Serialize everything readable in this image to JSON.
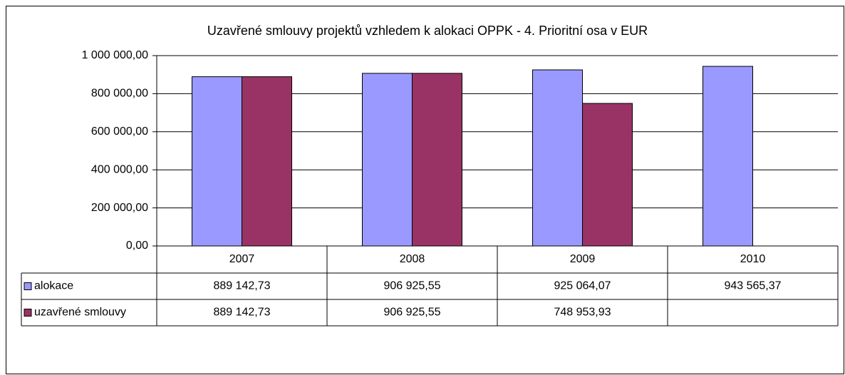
{
  "chart_data": {
    "type": "bar",
    "title": "Uzavřené smlouvy projektů vzhledem k alokaci OPPK - 4. Prioritní osa v EUR",
    "categories": [
      "2007",
      "2008",
      "2009",
      "2010"
    ],
    "series": [
      {
        "name": "alokace",
        "color": "#9999ff",
        "values": [
          889142.73,
          906925.55,
          925064.07,
          943565.37
        ],
        "value_labels": [
          "889 142,73",
          "906 925,55",
          "925 064,07",
          "943 565,37"
        ]
      },
      {
        "name": "uzavřené smlouvy",
        "color": "#993366",
        "values": [
          889142.73,
          906925.55,
          748953.93,
          null
        ],
        "value_labels": [
          "889 142,73",
          "906 925,55",
          "748 953,93",
          null
        ]
      }
    ],
    "ylim": [
      0,
      1000000
    ],
    "yticks": [
      {
        "value": 0,
        "label": "0,00"
      },
      {
        "value": 200000,
        "label": "200 000,00"
      },
      {
        "value": 400000,
        "label": "400 000,00"
      },
      {
        "value": 600000,
        "label": "600 000,00"
      },
      {
        "value": 800000,
        "label": "800 000,00"
      },
      {
        "value": 1000000,
        "label": "1 000 000,00"
      }
    ],
    "grid": true
  }
}
